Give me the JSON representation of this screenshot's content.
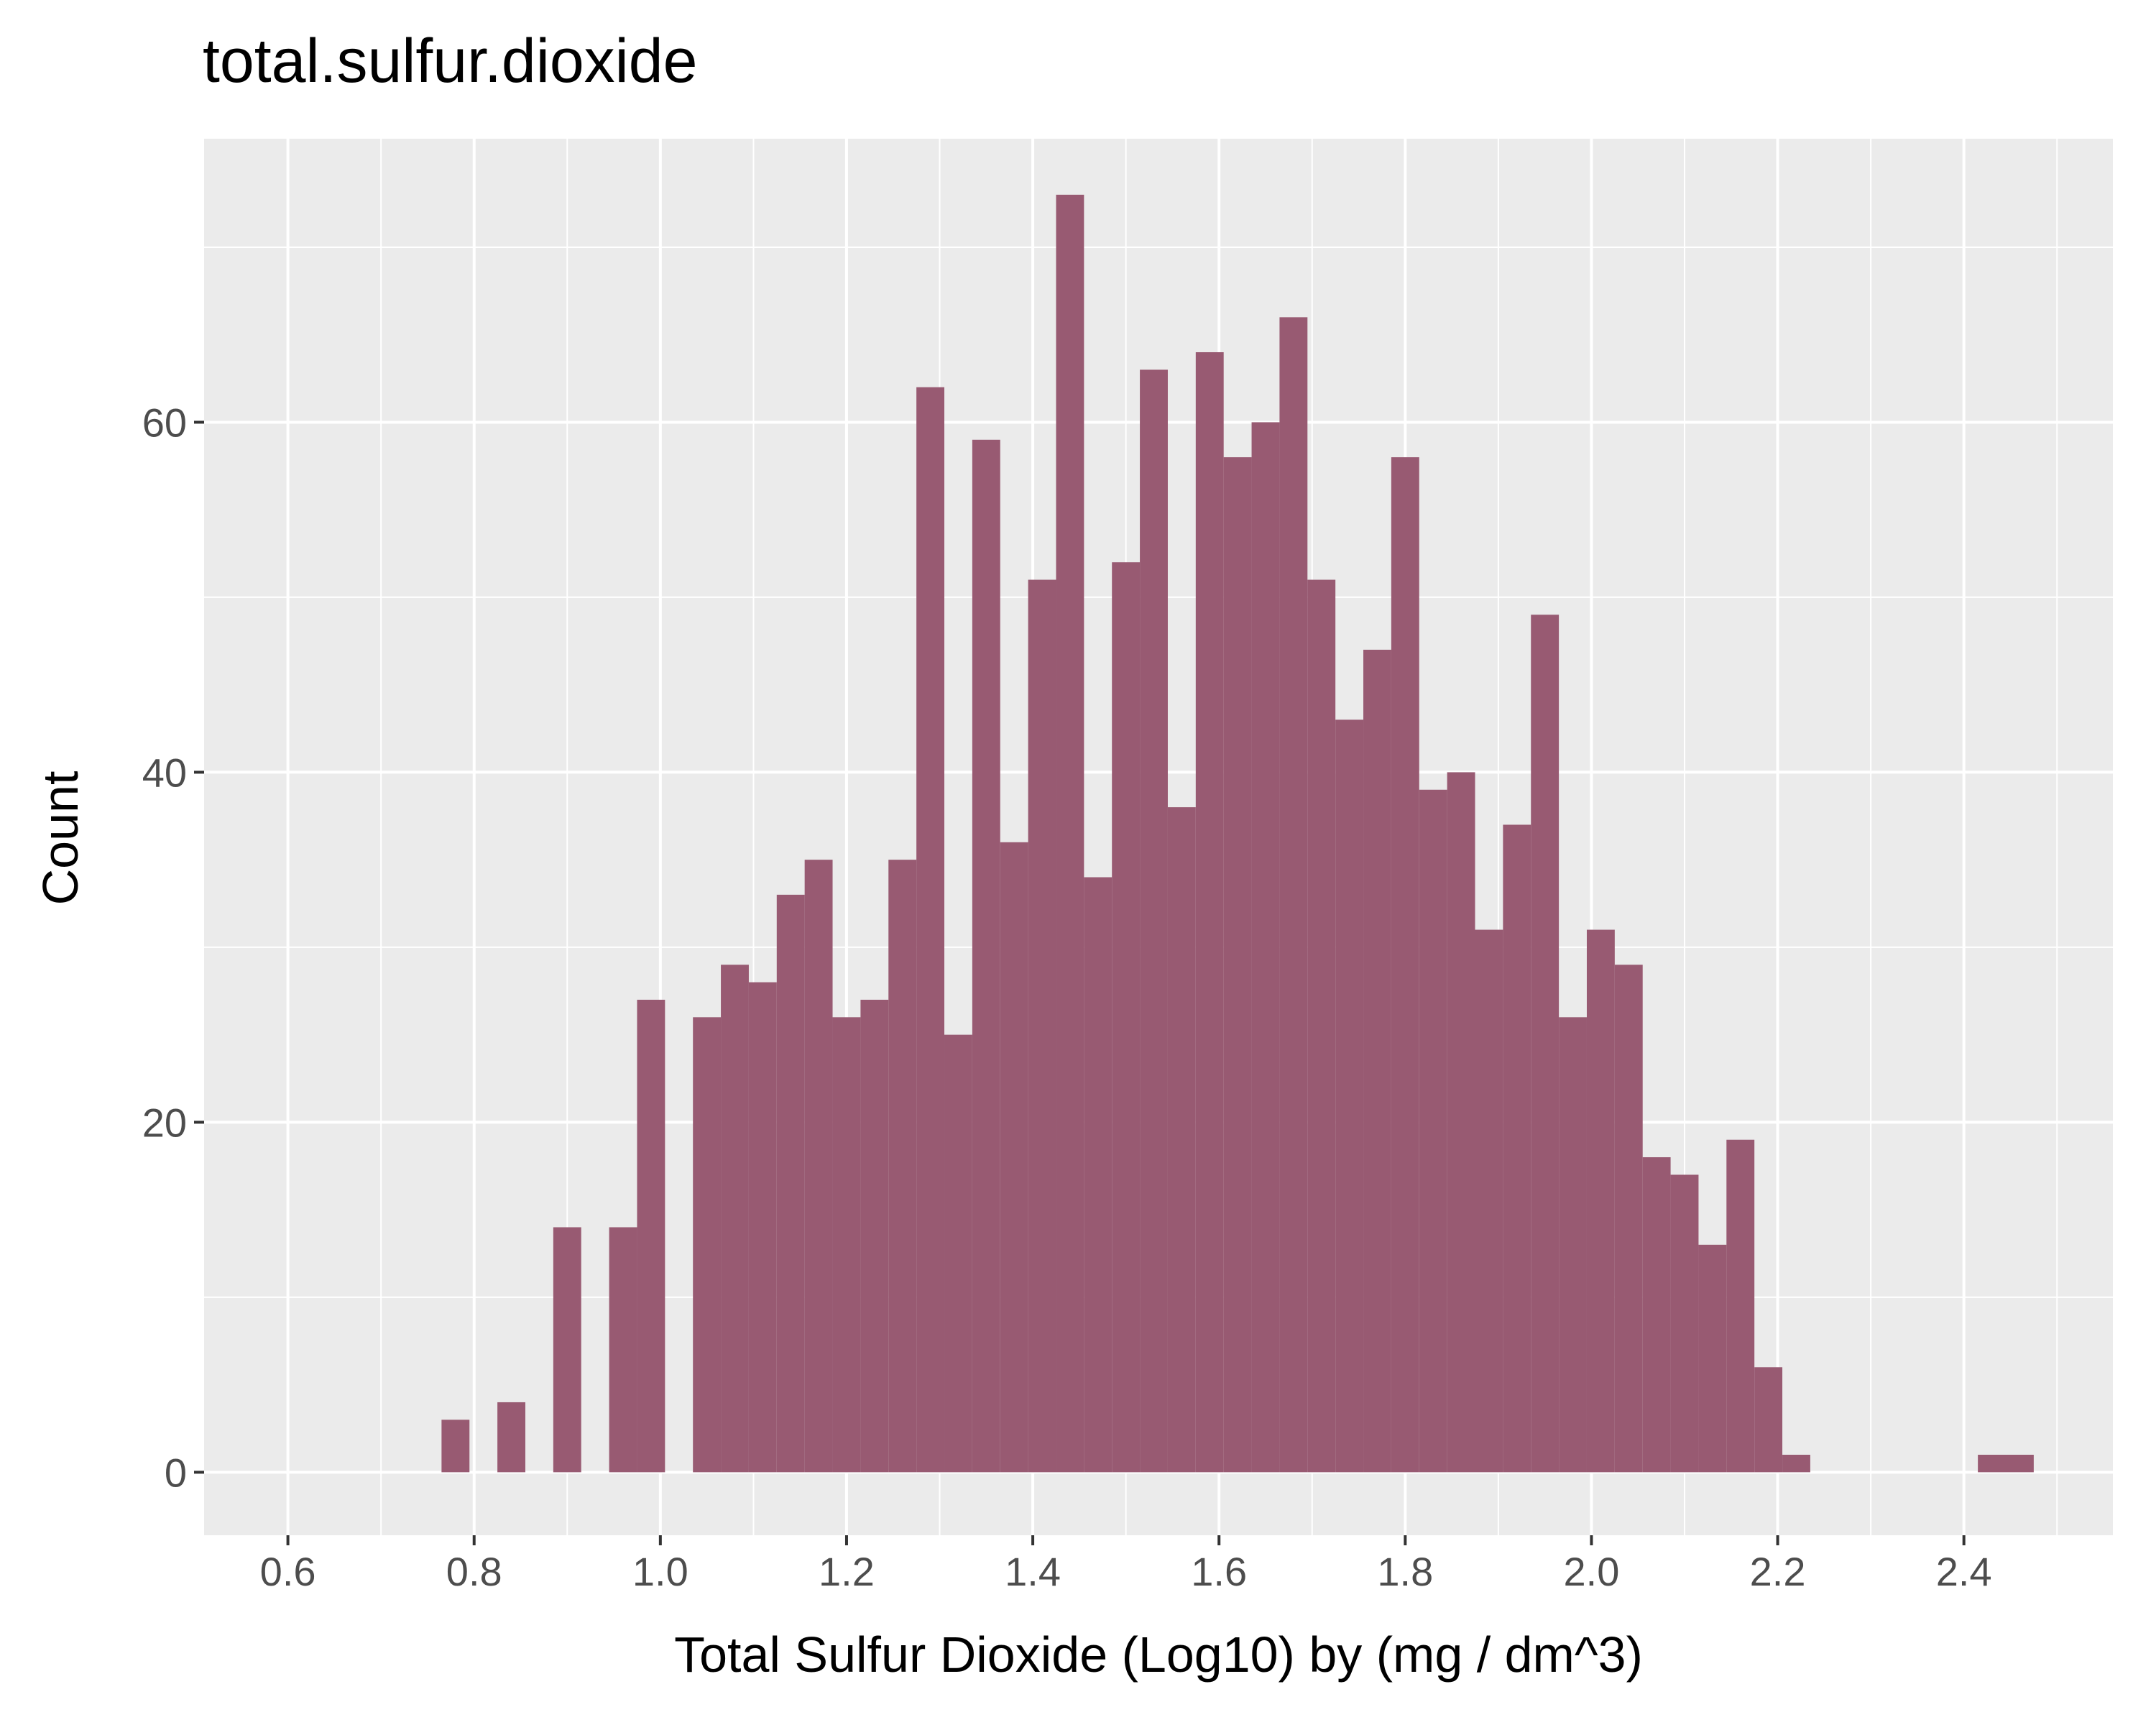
{
  "chart_data": {
    "type": "bar",
    "title": "total.sulfur.dioxide",
    "xlabel": "Total Sulfur Dioxide (Log10) by (mg / dm^3)",
    "ylabel": "Count",
    "xlim": [
      0.51,
      2.56
    ],
    "ylim": [
      -3.6,
      76.2
    ],
    "bin_width": 0.03,
    "x_ticks": [
      0.6,
      0.8,
      1.0,
      1.2,
      1.4,
      1.6,
      1.8,
      2.0,
      2.2,
      2.4
    ],
    "x_tick_labels": [
      "0.6",
      "0.8",
      "1.0",
      "1.2",
      "1.4",
      "1.6",
      "1.8",
      "2.0",
      "2.2",
      "2.4"
    ],
    "y_ticks": [
      0,
      20,
      40,
      60
    ],
    "y_tick_labels": [
      "0",
      "20",
      "40",
      "60"
    ],
    "grid": true,
    "colors": {
      "bar": "#985a72",
      "panel": "#ebebeb",
      "grid": "#ffffff"
    },
    "series": [
      {
        "x": [
          0.78,
          0.84,
          0.9,
          0.96,
          0.99,
          1.05,
          1.08,
          1.11,
          1.14,
          1.17,
          1.2,
          1.23,
          1.26,
          1.29,
          1.32,
          1.35,
          1.38,
          1.41,
          1.44,
          1.47,
          1.5,
          1.53,
          1.56,
          1.59,
          1.62,
          1.65,
          1.68,
          1.71,
          1.74,
          1.77,
          1.8,
          1.83,
          1.86,
          1.89,
          1.92,
          1.95,
          1.98,
          2.01,
          2.04,
          2.07,
          2.1,
          2.13,
          2.16,
          2.19,
          2.22,
          2.43,
          2.46
        ],
        "values": [
          3,
          4,
          14,
          14,
          27,
          26,
          29,
          28,
          33,
          35,
          26,
          27,
          35,
          62,
          25,
          59,
          36,
          51,
          73,
          34,
          52,
          63,
          38,
          64,
          58,
          60,
          66,
          51,
          43,
          47,
          58,
          39,
          40,
          31,
          37,
          49,
          26,
          31,
          29,
          18,
          17,
          13,
          19,
          6,
          1,
          1,
          1
        ]
      }
    ]
  }
}
